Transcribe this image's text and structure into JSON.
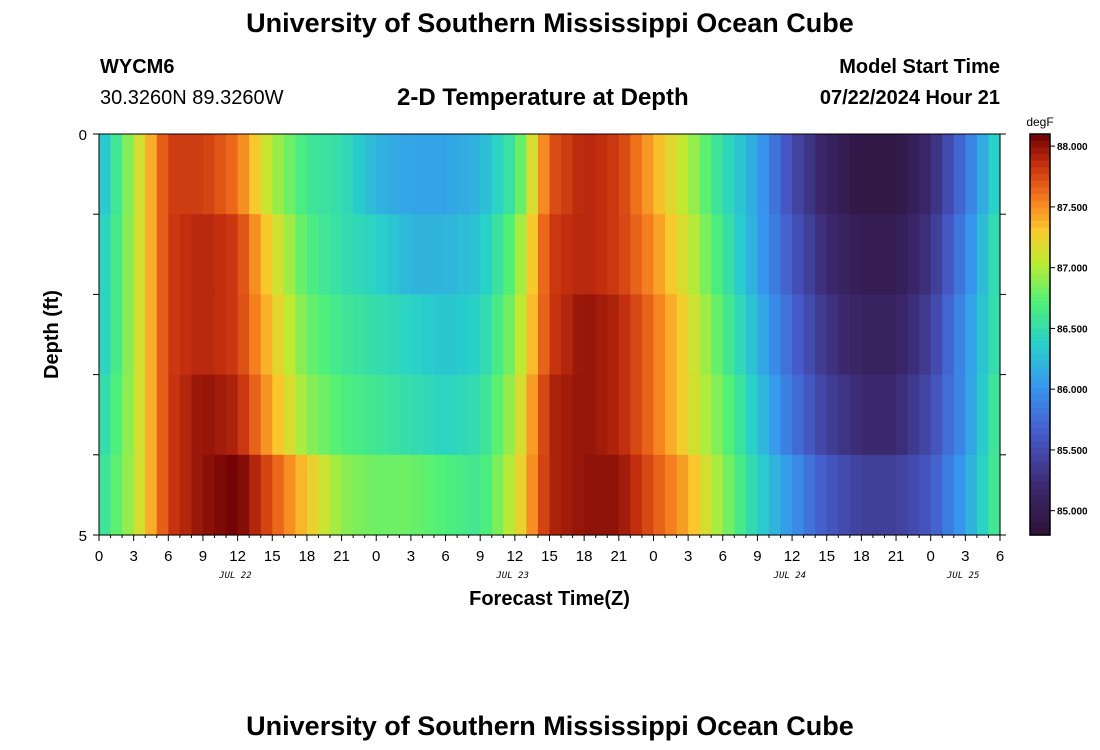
{
  "header": {
    "title": "University of Southern Mississippi Ocean Cube",
    "station_id": "WYCM6",
    "coordinates": "30.3260N  89.3260W",
    "subtitle": "2-D Temperature at Depth",
    "model_start_label": "Model Start Time",
    "model_start_value": "07/22/2024 Hour 21"
  },
  "footer": {
    "title": "University of Southern Mississippi Ocean Cube"
  },
  "chart_data": {
    "type": "heatmap",
    "xlabel": "Forecast Time(Z)",
    "ylabel": "Depth (ft)",
    "units": "degF",
    "x_tick_labels": [
      "0",
      "3",
      "6",
      "9",
      "12",
      "15",
      "18",
      "21",
      "0",
      "3",
      "6",
      "9",
      "12",
      "15",
      "18",
      "21",
      "0",
      "3",
      "6",
      "9",
      "12",
      "15",
      "18",
      "21",
      "0",
      "3",
      "6"
    ],
    "x_hours": [
      0,
      3,
      6,
      9,
      12,
      15,
      18,
      21,
      24,
      27,
      30,
      33,
      36,
      39,
      42,
      45,
      48,
      51,
      54,
      57,
      60,
      63,
      66,
      69,
      72,
      75,
      78
    ],
    "date_labels": [
      {
        "label": "JUL 22",
        "hour": 12.5
      },
      {
        "label": "JUL 23",
        "hour": 36.5
      },
      {
        "label": "JUL 24",
        "hour": 60.5
      },
      {
        "label": "JUL 25",
        "hour": 75.5
      }
    ],
    "y_tick_labels": [
      "0",
      "5"
    ],
    "ylim": [
      0,
      5
    ],
    "depths_ft": [
      0.5,
      1.5,
      2.5,
      3.5,
      4.5
    ],
    "colorbar": {
      "label": "degF",
      "vmin": 84.8,
      "vmax": 88.1,
      "tick_labels": [
        "85.000",
        "85.500",
        "86.000",
        "86.500",
        "87.000",
        "87.500",
        "88.000"
      ],
      "ticks": [
        85.0,
        85.5,
        86.0,
        86.5,
        87.0,
        87.5,
        88.0
      ]
    },
    "series": [
      {
        "depth_ft": 0.5,
        "hours": [
          0,
          3,
          6,
          9,
          12,
          15,
          18,
          21,
          24,
          27,
          30,
          33,
          36,
          39,
          42,
          45,
          48,
          51,
          54,
          57,
          60,
          63,
          66,
          69,
          72,
          75,
          78
        ],
        "values": [
          86.2,
          87.0,
          87.8,
          87.8,
          87.6,
          87.0,
          86.6,
          86.5,
          86.2,
          86.1,
          86.1,
          86.2,
          86.6,
          87.7,
          87.9,
          87.8,
          87.4,
          87.0,
          86.5,
          86.1,
          85.5,
          85.1,
          84.9,
          84.9,
          85.2,
          85.8,
          86.5
        ]
      },
      {
        "depth_ft": 1.5,
        "hours": [
          0,
          3,
          6,
          9,
          12,
          15,
          18,
          21,
          24,
          27,
          30,
          33,
          36,
          39,
          42,
          45,
          48,
          51,
          54,
          57,
          60,
          63,
          66,
          69,
          72,
          75,
          78
        ],
        "values": [
          86.3,
          87.0,
          87.8,
          87.9,
          87.8,
          87.2,
          86.7,
          86.5,
          86.4,
          86.2,
          86.2,
          86.3,
          86.8,
          87.8,
          87.9,
          87.8,
          87.5,
          87.1,
          86.6,
          86.1,
          85.6,
          85.2,
          85.0,
          85.0,
          85.3,
          85.9,
          86.6
        ]
      },
      {
        "depth_ft": 2.5,
        "hours": [
          0,
          3,
          6,
          9,
          12,
          15,
          18,
          21,
          24,
          27,
          30,
          33,
          36,
          39,
          42,
          45,
          48,
          51,
          54,
          57,
          60,
          63,
          66,
          69,
          72,
          75,
          78
        ],
        "values": [
          86.3,
          87.0,
          87.8,
          87.9,
          87.8,
          87.3,
          86.8,
          86.6,
          86.5,
          86.4,
          86.3,
          86.4,
          86.9,
          87.8,
          88.0,
          87.9,
          87.6,
          87.2,
          86.7,
          86.2,
          85.7,
          85.3,
          85.1,
          85.1,
          85.4,
          86.0,
          86.6
        ]
      },
      {
        "depth_ft": 3.5,
        "hours": [
          0,
          3,
          6,
          9,
          12,
          15,
          18,
          21,
          24,
          27,
          30,
          33,
          36,
          39,
          42,
          45,
          48,
          51,
          54,
          57,
          60,
          63,
          66,
          69,
          72,
          75,
          78
        ],
        "values": [
          86.4,
          87.0,
          87.8,
          88.0,
          87.9,
          87.4,
          86.9,
          86.7,
          86.6,
          86.5,
          86.4,
          86.5,
          87.0,
          87.9,
          88.0,
          87.9,
          87.6,
          87.2,
          86.8,
          86.3,
          85.8,
          85.4,
          85.2,
          85.2,
          85.5,
          86.0,
          86.7
        ]
      },
      {
        "depth_ft": 4.5,
        "hours": [
          0,
          3,
          6,
          9,
          12,
          15,
          18,
          21,
          24,
          27,
          30,
          33,
          36,
          39,
          42,
          45,
          48,
          51,
          54,
          57,
          60,
          63,
          66,
          69,
          72,
          75,
          78
        ],
        "values": [
          86.5,
          87.0,
          87.8,
          88.0,
          88.1,
          87.7,
          87.3,
          86.9,
          86.8,
          86.8,
          86.7,
          86.6,
          87.1,
          87.9,
          88.0,
          88.0,
          87.7,
          87.4,
          86.9,
          86.4,
          86.0,
          85.6,
          85.4,
          85.4,
          85.6,
          86.1,
          86.7
        ]
      }
    ]
  }
}
